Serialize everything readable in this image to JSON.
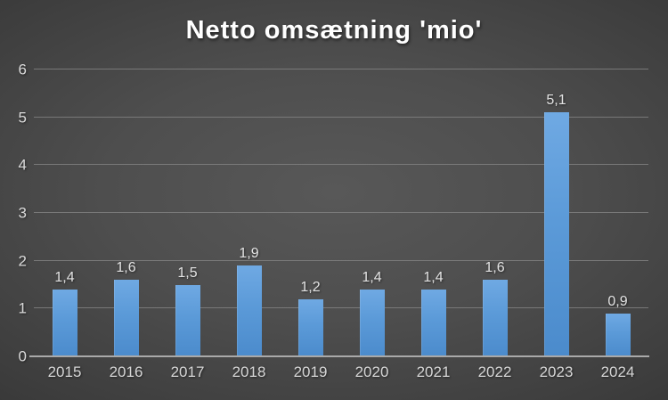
{
  "chart": {
    "title": "Netto omsætning 'mio'"
  },
  "chart_data": {
    "type": "bar",
    "title": "Netto omsætning 'mio'",
    "categories": [
      "2015",
      "2016",
      "2017",
      "2018",
      "2019",
      "2020",
      "2021",
      "2022",
      "2023",
      "2024"
    ],
    "values": [
      1.4,
      1.6,
      1.5,
      1.9,
      1.2,
      1.4,
      1.4,
      1.6,
      5.1,
      0.9
    ],
    "value_labels": [
      "1,4",
      "1,6",
      "1,5",
      "1,9",
      "1,2",
      "1,4",
      "1,4",
      "1,6",
      "5,1",
      "0,9"
    ],
    "yticks": [
      0,
      1,
      2,
      3,
      4,
      5,
      6
    ],
    "ylim": [
      0,
      6
    ],
    "xlabel": "",
    "ylabel": "",
    "grid": "horizontal",
    "legend": "none",
    "colors": {
      "bar_top": "#6fa9e3",
      "bar_bottom": "#4b8bcc",
      "background_center": "#585858",
      "background_edge": "#252525",
      "gridline": "#818181",
      "axis_line": "#a9a9a9",
      "title_text": "#ffffff",
      "tick_text": "#d6d6d6",
      "value_text": "#e3e3e3"
    }
  }
}
